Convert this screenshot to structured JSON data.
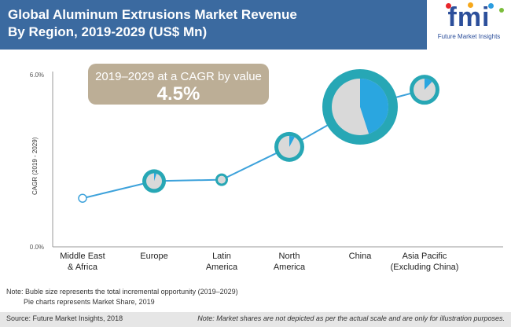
{
  "header": {
    "title_line1": "Global Aluminum Extrusions Market Revenue",
    "title_line2": "By Region, 2019-2029 (US$ Mn)"
  },
  "logo": {
    "text": "fmi",
    "subtitle": "Future Market Insights",
    "dot_colors": [
      "#e8262b",
      "#f6a81c",
      "#2c9de0",
      "#7bbd3b"
    ]
  },
  "colors": {
    "header_bg": "#3b6aa0",
    "line": "#3da2db",
    "bubble_ring": "#27a7b5",
    "pie_light": "#d9d9d9",
    "pie_share": "#2aa6e0",
    "callout_bg": "#bcae96",
    "axis": "#999999"
  },
  "callout": {
    "subtitle": "2019–2029 at a CAGR by value",
    "value": "4.5%"
  },
  "chart_data": {
    "type": "scatter",
    "title": "Global Aluminum Extrusions Market Revenue By Region, 2019-2029 (US$ Mn)",
    "ylabel": "CAGR (2019 - 2029)",
    "ylim": [
      0,
      6
    ],
    "yticks": [
      "0.0%",
      "6.0%"
    ],
    "categories": [
      [
        "Middle East",
        "& Africa"
      ],
      [
        "Europe"
      ],
      [
        "Latin",
        "America"
      ],
      [
        "North",
        "America"
      ],
      [
        "China"
      ],
      [
        "Asia Pacific",
        "(Excluding China)"
      ]
    ],
    "values": [
      1.7,
      2.3,
      2.35,
      3.5,
      4.9,
      5.5
    ],
    "bubble_size": [
      "dot",
      "small",
      "tiny",
      "medium",
      "large",
      "medium"
    ],
    "market_share": [
      null,
      0.05,
      null,
      0.08,
      0.45,
      0.12
    ]
  },
  "notes": {
    "line1": "Note: Buble size represents the total incremental opportunity (2019–2029)",
    "line2": "Pie charts represents Market Share, 2019"
  },
  "footer": {
    "source": "Source: Future Market Insights, 2018",
    "disclaimer": "Note: Market shares are not depicted as per the actual scale and are only for illustration purposes."
  }
}
